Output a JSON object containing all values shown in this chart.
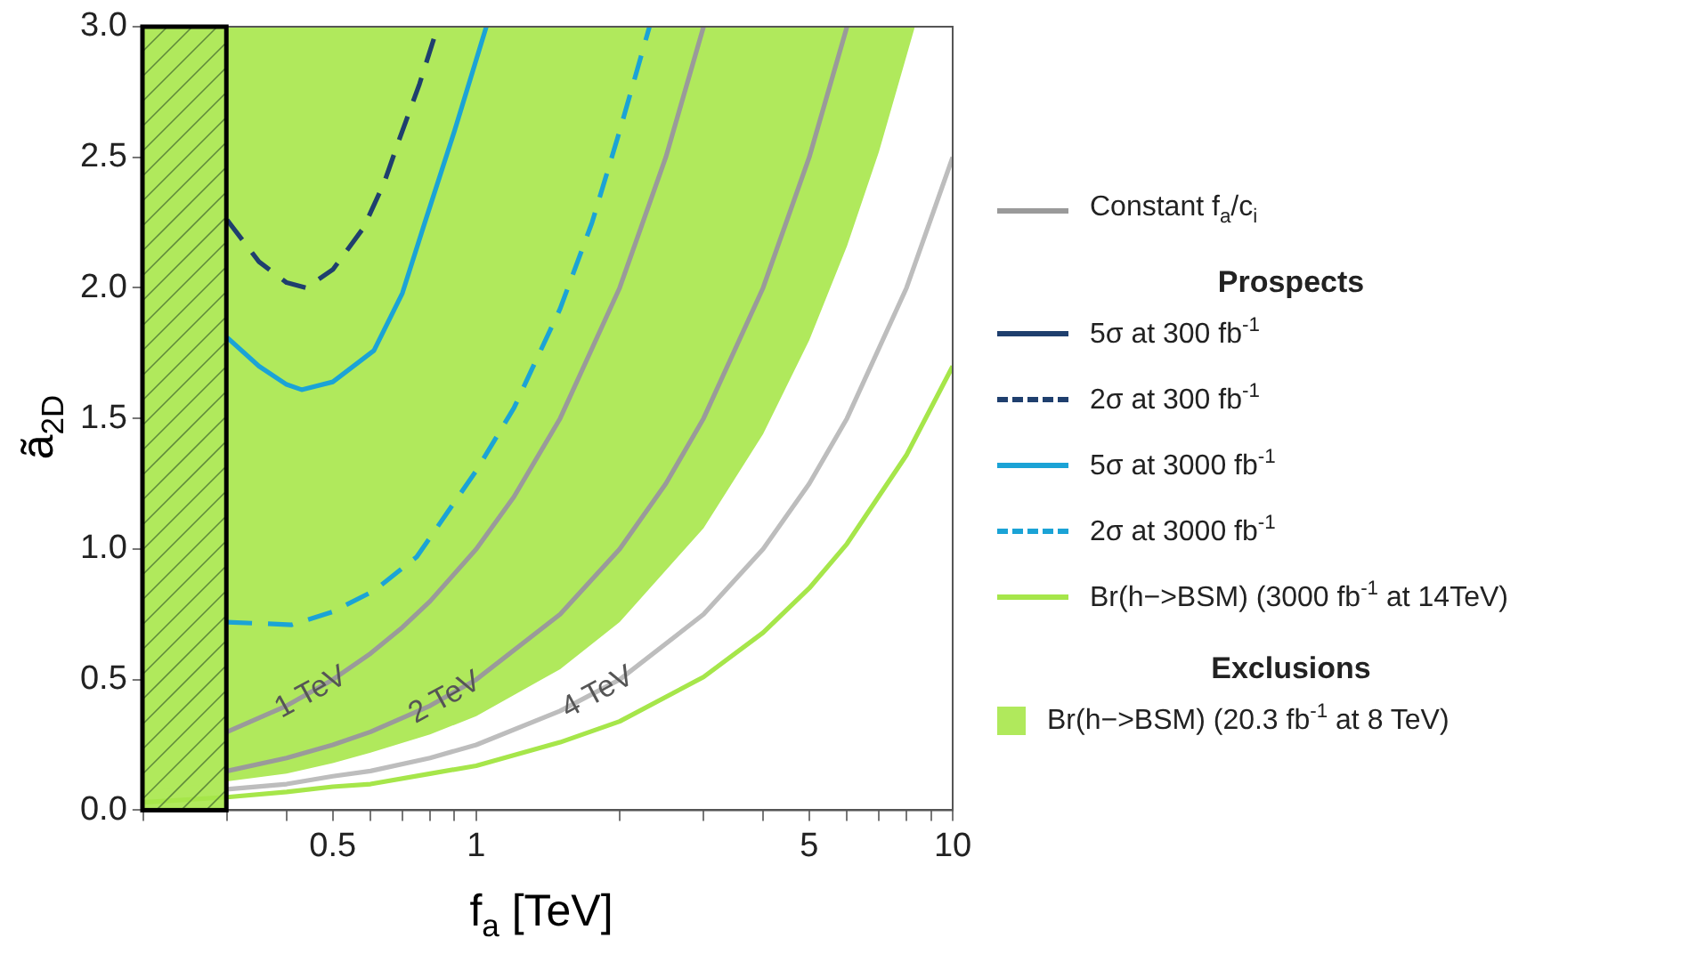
{
  "chart_data": {
    "type": "line",
    "xlabel": "f$_{a}$ [TeV]",
    "ylabel": "ã$_{2D}$",
    "legend_title": "Prospects",
    "log": "x",
    "grid": false,
    "legend": "right",
    "marker": "none",
    "xlim": [
      0.2,
      10
    ],
    "xticks": [
      {
        "value": 0.2,
        "label": null
      },
      {
        "value": 0.3,
        "label": null
      },
      {
        "value": 0.4,
        "label": null
      },
      0.5,
      {
        "value": 0.6,
        "label": null
      },
      {
        "value": 0.7,
        "label": null
      },
      {
        "value": 0.8,
        "label": null
      },
      {
        "value": 0.9,
        "label": null
      },
      1,
      {
        "value": 2,
        "label": null
      },
      {
        "value": 3,
        "label": null
      },
      {
        "value": 4,
        "label": null
      },
      5,
      {
        "value": 6,
        "label": null
      },
      {
        "value": 7,
        "label": null
      },
      {
        "value": 8,
        "label": null
      },
      {
        "value": 9,
        "label": null
      },
      10
    ],
    "ylim": [
      0,
      3
    ],
    "yticks": [
      {
        "value": 0,
        "label": "0.0"
      },
      {
        "value": 0.5,
        "label": "0.5"
      },
      {
        "value": 1,
        "label": "1.0"
      },
      {
        "value": 1.5,
        "label": "1.5"
      },
      {
        "value": 2,
        "label": "2.0"
      },
      {
        "value": 2.5,
        "label": "2.5"
      },
      {
        "value": 3,
        "label": "3.0"
      }
    ],
    "series": [
      {
        "name": "Constant f$_{a}$/c$_{i}$",
        "color": "#9a9a9a",
        "x": [
          0.3,
          0.4,
          0.5,
          0.6,
          0.7,
          0.8,
          1,
          1.2,
          1.5,
          2,
          2.5,
          3
        ],
        "values": [
          0.3,
          0.4,
          0.5,
          0.6,
          0.7,
          0.8,
          1,
          1.2,
          1.5,
          2,
          2.5,
          3
        ]
      },
      {
        "name": "5σ at 300 fb$^{-1}$",
        "color": "#1f3f6e"
      },
      {
        "name": "2σ at 300 fb$^{-1}$",
        "color": "#1f3f6e",
        "line_style": "dashed",
        "x": [
          0.3,
          0.35,
          0.4,
          0.44,
          0.5,
          0.58,
          0.64,
          0.69,
          0.76,
          0.83
        ],
        "values": [
          2.26,
          2.1,
          2.02,
          2.0,
          2.07,
          2.23,
          2.4,
          2.57,
          2.78,
          3.0
        ]
      },
      {
        "name": "5σ at 3000 fb$^{-1}$",
        "color": "#1ba3d6",
        "x": [
          0.3,
          0.35,
          0.4,
          0.43,
          0.5,
          0.61,
          0.7,
          0.78,
          0.9,
          1.05
        ],
        "values": [
          1.81,
          1.7,
          1.63,
          1.61,
          1.64,
          1.76,
          1.98,
          2.25,
          2.6,
          3.0
        ]
      },
      {
        "name": "2σ at 3000 fb$^{-1}$",
        "color": "#1ba3d6",
        "line_style": "dashed",
        "x": [
          0.3,
          0.41,
          0.5,
          0.61,
          0.75,
          0.87,
          1.0,
          1.2,
          1.31,
          1.5,
          1.75,
          2.0,
          2.31
        ],
        "values": [
          0.72,
          0.71,
          0.76,
          0.84,
          0.97,
          1.14,
          1.3,
          1.54,
          1.69,
          1.92,
          2.25,
          2.6,
          3.0
        ]
      },
      {
        "name": "Br(h−>BSM) (3000 fb$^{-1}$ at 14TeV)",
        "color": "#a6e64a",
        "x": [
          0.2,
          0.3,
          0.4,
          0.5,
          0.6,
          0.8,
          1,
          1.5,
          2,
          3,
          4,
          5,
          6,
          8,
          10
        ],
        "values": [
          0.03,
          0.05,
          0.07,
          0.09,
          0.1,
          0.14,
          0.17,
          0.26,
          0.34,
          0.51,
          0.68,
          0.85,
          1.02,
          1.36,
          1.7
        ]
      },
      {
        "name": "Br(h−>BSM) (20.3 fb$^{-1}$ at 8 TeV)",
        "type": "area",
        "color": "#b0e95c",
        "x": [
          0.2,
          0.2,
          0.3,
          0.4,
          0.5,
          0.6,
          0.8,
          1,
          1.5,
          2,
          3,
          4,
          5,
          6,
          7,
          8.33
        ],
        "values": [
          3,
          0.07,
          0.11,
          0.14,
          0.18,
          0.22,
          0.29,
          0.36,
          0.54,
          0.72,
          1.08,
          1.44,
          1.8,
          2.16,
          2.52,
          3.0
        ]
      },
      {
        "color": "#9a9a9a",
        "x": [
          0.3,
          0.4,
          0.5,
          0.6,
          0.8,
          1,
          1.5,
          2,
          2.5,
          3,
          4,
          5,
          6
        ],
        "values": [
          0.15,
          0.2,
          0.25,
          0.3,
          0.4,
          0.5,
          0.75,
          1,
          1.25,
          1.5,
          2,
          2.5,
          3
        ]
      },
      {
        "color": "#bdbdbd",
        "x": [
          0.3,
          0.4,
          0.5,
          0.6,
          0.8,
          1,
          1.5,
          2,
          3,
          4,
          5,
          6,
          8,
          10
        ],
        "values": [
          0.08,
          0.1,
          0.13,
          0.15,
          0.2,
          0.25,
          0.38,
          0.5,
          0.75,
          1,
          1.25,
          1.5,
          2,
          2.5
        ]
      }
    ],
    "bands": [
      {
        "axis": "x",
        "from": 0.2,
        "to": 0.3,
        "color": "#b0e95c"
      }
    ],
    "annotations": [
      "Exclusions",
      {
        "text": "1 TeV",
        "x": 0.45,
        "y": 0.45
      },
      {
        "text": "2 TeV",
        "x": 0.86,
        "y": 0.43
      },
      {
        "text": "4 TeV",
        "x": 1.8,
        "y": 0.45
      }
    ]
  }
}
